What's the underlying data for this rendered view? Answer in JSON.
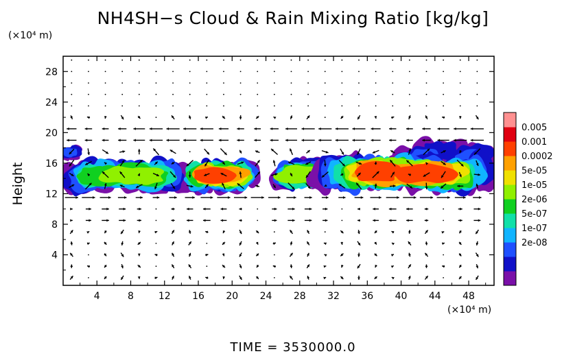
{
  "chart_data": {
    "type": "heatmap",
    "title": "NH4SH−s Cloud & Rain Mixing Ratio [kg/kg]",
    "ylabel": "Height",
    "y_unit": "(×10⁴ m)",
    "x_unit": "(×10⁴ m)",
    "time_label": "TIME  =  3530000.0",
    "xlim": [
      0,
      51
    ],
    "ylim": [
      0,
      30
    ],
    "x_ticks": [
      4,
      8,
      12,
      16,
      20,
      24,
      28,
      32,
      36,
      40,
      44,
      48
    ],
    "y_ticks": [
      4,
      8,
      12,
      16,
      20,
      24,
      28
    ],
    "colorbar": {
      "levels": [
        "0.005",
        "0.001",
        "0.0002",
        "5e-05",
        "1e-05",
        "2e-06",
        "5e-07",
        "1e-07",
        "2e-08"
      ],
      "colors": [
        "#7a10a8",
        "#1010c8",
        "#1f50ff",
        "#10b4ff",
        "#10e0a8",
        "#10d020",
        "#90f000",
        "#f0e000",
        "#ffa000",
        "#ff4000",
        "#e00010",
        "#ff9090"
      ]
    },
    "cloud_regions": [
      {
        "x_range": [
          0,
          2
        ],
        "y_range": [
          16.5,
          18.2
        ],
        "peak": "1e-07"
      },
      {
        "x_range": [
          0,
          14.5
        ],
        "y_range": [
          12.2,
          16.4
        ],
        "peak": "1e-05"
      },
      {
        "x_range": [
          14.5,
          22.5
        ],
        "y_range": [
          12.3,
          16.5
        ],
        "peak": "0.0002"
      },
      {
        "x_range": [
          25.5,
          30.5
        ],
        "y_range": [
          12.5,
          16.5
        ],
        "peak": "5e-05"
      },
      {
        "x_range": [
          30,
          51
        ],
        "y_range": [
          12.3,
          17.0
        ],
        "peak": "0.0002"
      },
      {
        "x_range": [
          40,
          51
        ],
        "y_range": [
          15.5,
          18.8
        ],
        "peak": "1e-07"
      }
    ]
  }
}
